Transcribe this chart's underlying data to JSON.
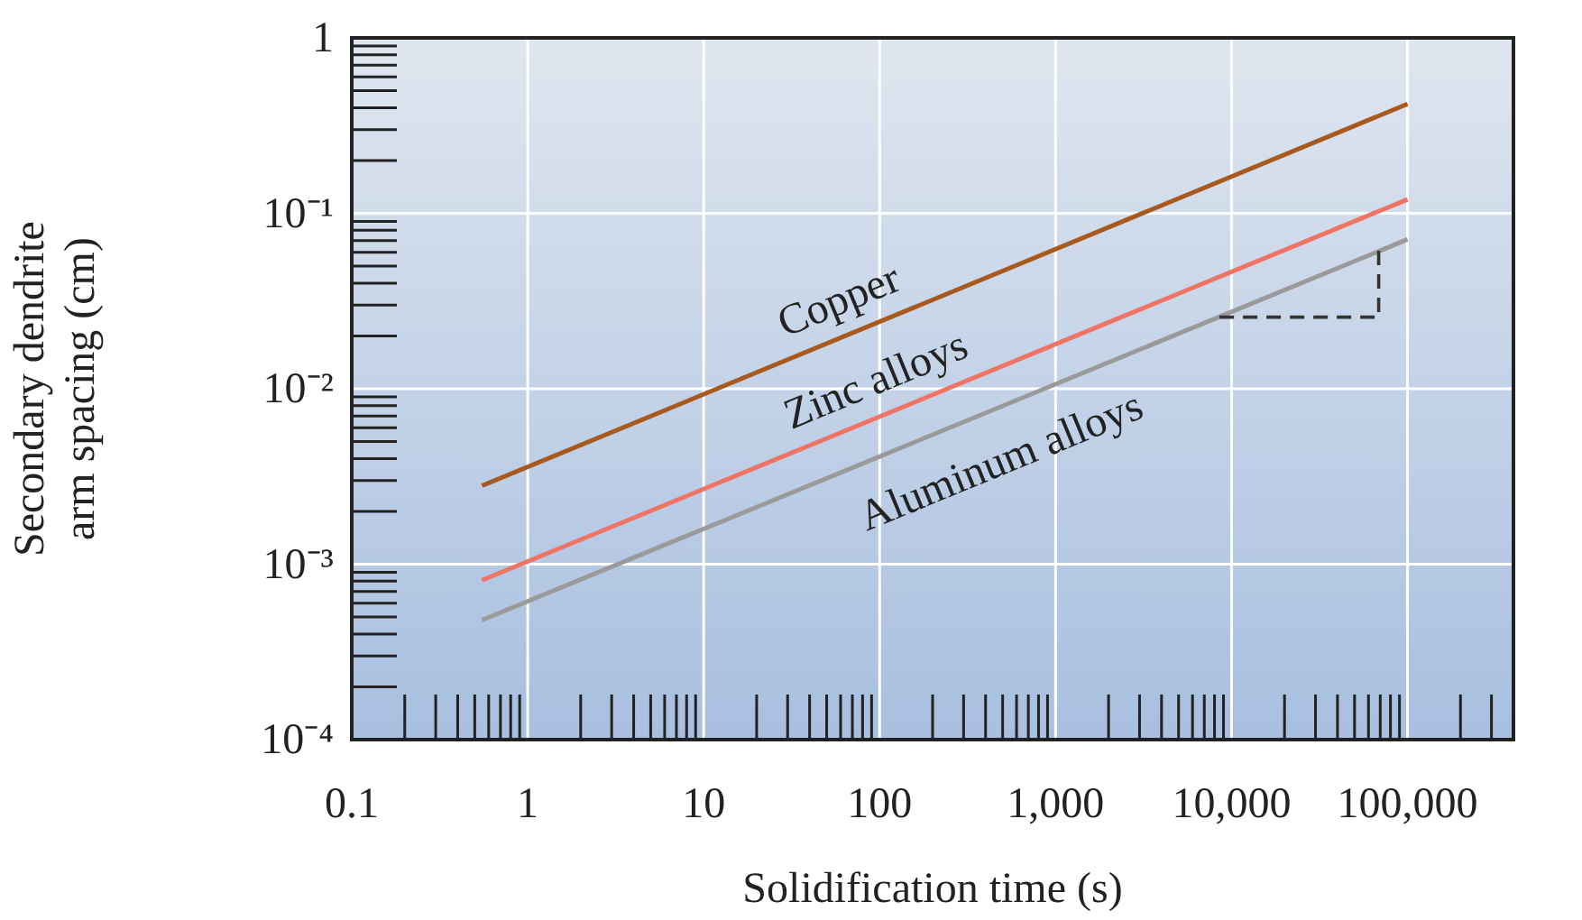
{
  "chart_data": {
    "type": "line",
    "xlabel": "Solidification time (s)",
    "ylabel": "Secondary dendrite\narm spacing (cm)",
    "log": "xy",
    "grid": true,
    "xlim": [
      0.1,
      400000
    ],
    "ylim": [
      0.0001,
      1
    ],
    "xticks": [
      0.1,
      1,
      10,
      100,
      {
        "value": 1000,
        "label": "1,000"
      },
      {
        "value": 10000,
        "label": "10,000"
      },
      {
        "value": 100000,
        "label": "100,000"
      }
    ],
    "yticks": [
      {
        "value": 0.0001,
        "label": "10⁻⁴"
      },
      {
        "value": 0.001,
        "label": "10⁻³"
      },
      {
        "value": 0.01,
        "label": "10⁻²"
      },
      {
        "value": 0.1,
        "label": "10⁻¹"
      },
      1
    ],
    "x": [
      0.55,
      100000
    ],
    "series": [
      {
        "name": "Copper",
        "color": "#a8591e",
        "values": [
          0.0028,
          0.42
        ]
      },
      {
        "name": "Zinc alloys",
        "color": "#ef7466",
        "values": [
          0.00081,
          0.12
        ]
      },
      {
        "name": "Aluminum alloys",
        "color": "#9a9a9a",
        "values": [
          0.00048,
          0.071
        ]
      }
    ]
  }
}
